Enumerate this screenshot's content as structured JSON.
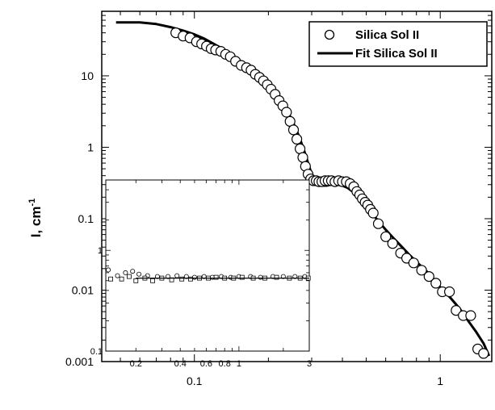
{
  "chart_data": {
    "type": "scatter",
    "title": "",
    "xlabel": "",
    "ylabel": "I, cm",
    "ylabel_superscript": "-1",
    "xscale": "log",
    "yscale": "log",
    "xlim": [
      0.042,
      1.62
    ],
    "ylim": [
      0.001,
      80
    ],
    "x_tick_labels": [
      {
        "value": 0.1,
        "label": "0.1"
      },
      {
        "value": 1,
        "label": "1"
      }
    ],
    "y_tick_labels": [
      {
        "value": 10,
        "label": "10"
      },
      {
        "value": 1,
        "label": "1"
      },
      {
        "value": 0.1,
        "label": "0.1"
      },
      {
        "value": 0.01,
        "label": "0.01"
      },
      {
        "value": 0.001,
        "label": "0.001"
      }
    ],
    "legend_position": "top-right",
    "series": [
      {
        "name": "Silica Sol II",
        "style": "open-circle",
        "color": "#000000",
        "x": [
          0.084,
          0.09,
          0.096,
          0.102,
          0.107,
          0.112,
          0.117,
          0.122,
          0.128,
          0.134,
          0.14,
          0.147,
          0.155,
          0.163,
          0.17,
          0.177,
          0.184,
          0.191,
          0.198,
          0.205,
          0.213,
          0.221,
          0.229,
          0.237,
          0.245,
          0.253,
          0.261,
          0.269,
          0.276,
          0.283,
          0.29,
          0.297,
          0.305,
          0.313,
          0.321,
          0.33,
          0.34,
          0.35,
          0.361,
          0.373,
          0.386,
          0.4,
          0.415,
          0.43,
          0.445,
          0.458,
          0.47,
          0.482,
          0.495,
          0.507,
          0.52,
          0.534,
          0.56,
          0.6,
          0.64,
          0.69,
          0.73,
          0.78,
          0.84,
          0.9,
          0.96,
          1.02,
          1.09,
          1.16,
          1.24,
          1.33,
          1.42,
          1.5
        ],
        "y": [
          40,
          36,
          34,
          30,
          28,
          26,
          24,
          23,
          22,
          20,
          18.5,
          16,
          14,
          13,
          12,
          10.5,
          9.5,
          8.5,
          7.5,
          6.5,
          5.5,
          4.5,
          3.8,
          3.1,
          2.3,
          1.75,
          1.3,
          0.95,
          0.72,
          0.54,
          0.42,
          0.36,
          0.34,
          0.34,
          0.33,
          0.33,
          0.34,
          0.34,
          0.34,
          0.33,
          0.34,
          0.33,
          0.33,
          0.31,
          0.28,
          0.24,
          0.215,
          0.19,
          0.17,
          0.155,
          0.135,
          0.12,
          0.085,
          0.056,
          0.045,
          0.033,
          0.028,
          0.024,
          0.019,
          0.0155,
          0.0125,
          0.0095,
          0.0095,
          0.0052,
          0.0044,
          0.0044,
          0.0015,
          0.0013
        ]
      },
      {
        "name": "Fit Silica Sol II",
        "style": "line",
        "color": "#000000",
        "x": [
          0.048,
          0.06,
          0.07,
          0.08,
          0.09,
          0.1,
          0.11,
          0.12,
          0.13,
          0.14,
          0.15,
          0.16,
          0.17,
          0.18,
          0.19,
          0.2,
          0.21,
          0.22,
          0.23,
          0.24,
          0.25,
          0.26,
          0.27,
          0.28,
          0.29,
          0.3,
          0.31,
          0.32,
          0.33,
          0.345,
          0.36,
          0.38,
          0.4,
          0.42,
          0.44,
          0.46,
          0.48,
          0.5,
          0.52,
          0.55,
          0.6,
          0.65,
          0.7,
          0.75,
          0.8,
          0.9,
          1.0,
          1.1,
          1.2,
          1.3,
          1.4,
          1.5,
          1.58
        ],
        "y": [
          56,
          56,
          53,
          48,
          43,
          38,
          33,
          28,
          24,
          20,
          17,
          14.5,
          12.5,
          10.5,
          9,
          7.5,
          6.2,
          5,
          4,
          3.1,
          2.35,
          1.75,
          1.25,
          0.88,
          0.6,
          0.42,
          0.33,
          0.3,
          0.29,
          0.29,
          0.3,
          0.3,
          0.29,
          0.27,
          0.24,
          0.21,
          0.18,
          0.155,
          0.13,
          0.1,
          0.07,
          0.052,
          0.04,
          0.031,
          0.025,
          0.017,
          0.011,
          0.0078,
          0.0055,
          0.0037,
          0.0026,
          0.0018,
          0.0012
        ]
      }
    ],
    "inset": {
      "xscale": "log",
      "yscale": "log",
      "xlim": [
        0.125,
        3
      ],
      "ylim": [
        0.1,
        5
      ],
      "x_tick_labels": [
        {
          "value": 0.2,
          "label": "0.2"
        },
        {
          "value": 0.4,
          "label": "0.4"
        },
        {
          "value": 0.6,
          "label": "0.6"
        },
        {
          "value": 0.8,
          "label": "0.8"
        },
        {
          "value": 1,
          "label": "1"
        },
        {
          "value": 3,
          "label": "3"
        }
      ],
      "y_tick_labels": [
        {
          "value": 1,
          "label": "1"
        },
        {
          "value": 0.1,
          "label": "0.1"
        }
      ],
      "series": [
        {
          "style": "open-circle",
          "x": [
            0.13,
            0.15,
            0.17,
            0.19,
            0.21,
            0.24,
            0.28,
            0.33,
            0.38,
            0.44,
            0.5,
            0.58,
            0.66,
            0.76,
            0.88,
            1.0,
            1.2,
            1.4,
            1.7,
            2.0,
            2.4,
            2.8
          ],
          "y": [
            0.64,
            0.56,
            0.6,
            0.62,
            0.58,
            0.56,
            0.55,
            0.55,
            0.56,
            0.55,
            0.54,
            0.55,
            0.54,
            0.55,
            0.54,
            0.55,
            0.55,
            0.54,
            0.55,
            0.55,
            0.55,
            0.55
          ]
        },
        {
          "style": "open-square",
          "x": [
            0.135,
            0.16,
            0.18,
            0.2,
            0.23,
            0.26,
            0.3,
            0.35,
            0.41,
            0.47,
            0.54,
            0.62,
            0.7,
            0.8,
            0.92,
            1.05,
            1.25,
            1.5,
            1.8,
            2.2,
            2.6,
            2.95
          ],
          "y": [
            0.52,
            0.52,
            0.55,
            0.5,
            0.53,
            0.5,
            0.53,
            0.51,
            0.52,
            0.52,
            0.53,
            0.53,
            0.54,
            0.53,
            0.53,
            0.54,
            0.53,
            0.53,
            0.54,
            0.53,
            0.53,
            0.53
          ]
        },
        {
          "style": "line",
          "x": [
            0.2,
            3
          ],
          "y": [
            0.53,
            0.53
          ]
        }
      ]
    }
  }
}
